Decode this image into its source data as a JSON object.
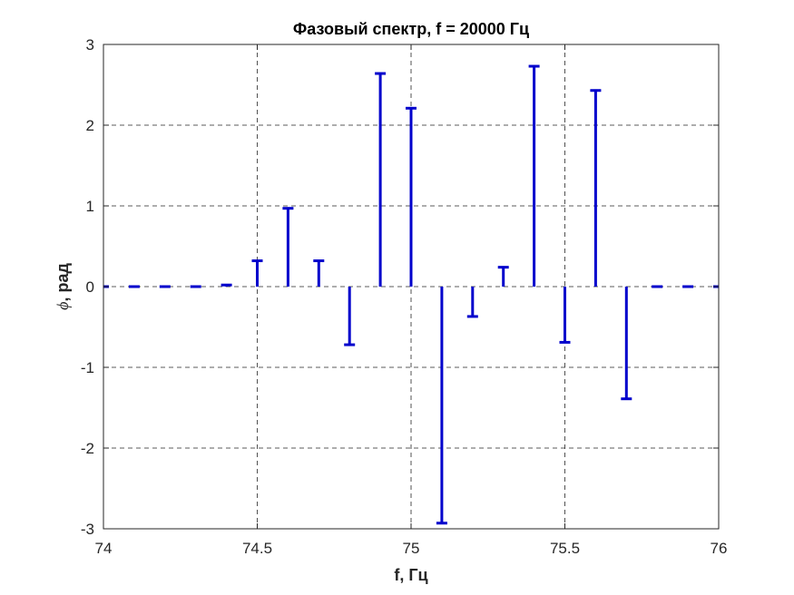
{
  "chart_data": {
    "type": "stem",
    "title": "Фазовый спектр, f = 20000 Гц",
    "xlabel": "f, Гц",
    "ylabel_symbol": "ϕ",
    "ylabel_text": ", рад",
    "xlim": [
      74,
      76
    ],
    "ylim": [
      -3,
      3
    ],
    "xticks": [
      74,
      74.5,
      75,
      75.5,
      76
    ],
    "xtick_labels": [
      "74",
      "74.5",
      "75",
      "75.5",
      "76"
    ],
    "yticks": [
      -3,
      -2,
      -1,
      0,
      1,
      2,
      3
    ],
    "ytick_labels": [
      "-3",
      "-2",
      "-1",
      "0",
      "1",
      "2",
      "3"
    ],
    "grid": true,
    "grid_style": "dashed",
    "series_color": "#0000CC",
    "series": [
      {
        "x": [
          74.0,
          74.1,
          74.2,
          74.3,
          74.4,
          74.5,
          74.6,
          74.7,
          74.8,
          74.9,
          75.0,
          75.1,
          75.2,
          75.3,
          75.4,
          75.5,
          75.6,
          75.7,
          75.8,
          75.9,
          76.0
        ],
        "values": [
          0.0,
          0.0,
          0.0,
          0.0,
          0.02,
          0.32,
          0.97,
          0.32,
          -0.72,
          2.64,
          2.21,
          -2.93,
          -0.37,
          0.24,
          2.73,
          -0.69,
          2.43,
          -1.39,
          0.0,
          0.0,
          0.0
        ]
      }
    ]
  }
}
